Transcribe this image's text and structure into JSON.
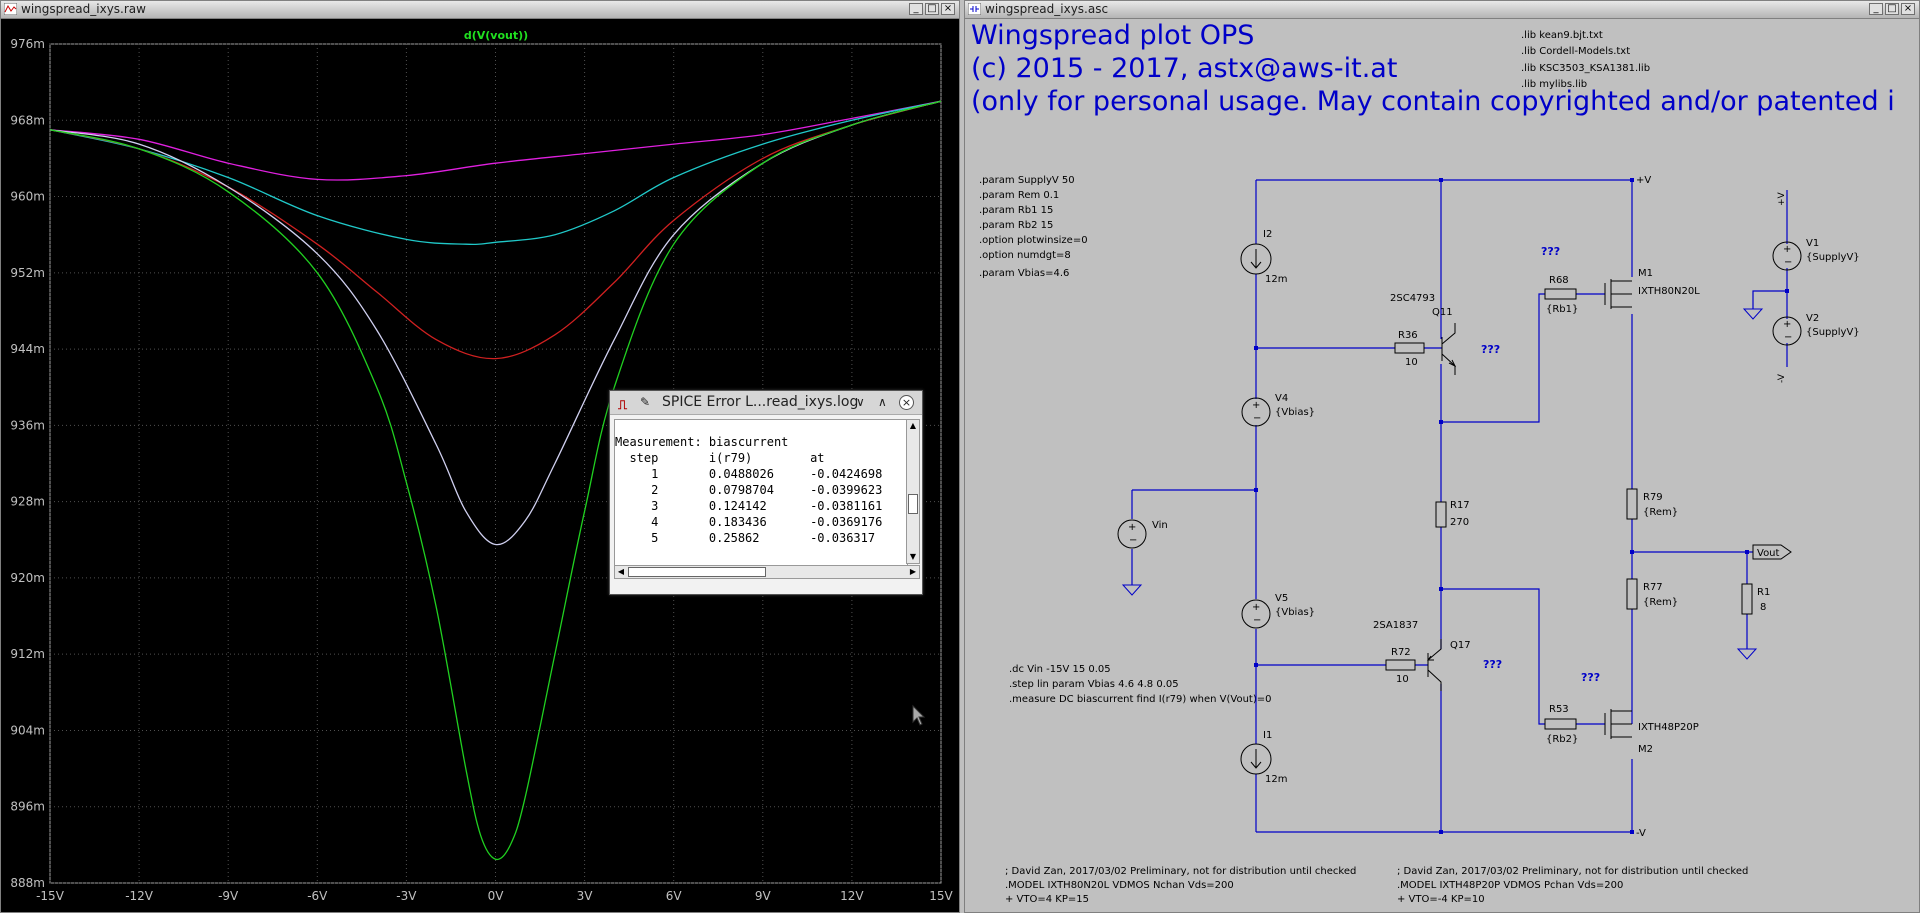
{
  "plot_window": {
    "title": "wingspread_ixys.raw",
    "trace_label": "d(V(vout))"
  },
  "chart_data": {
    "type": "line",
    "title": "d(V(vout))",
    "xlabel": "",
    "ylabel": "",
    "x_tick_labels": [
      "-15V",
      "-12V",
      "-9V",
      "-6V",
      "-3V",
      "0V",
      "3V",
      "6V",
      "9V",
      "12V",
      "15V"
    ],
    "y_tick_labels": [
      "976m",
      "968m",
      "960m",
      "952m",
      "944m",
      "936m",
      "928m",
      "920m",
      "912m",
      "904m",
      "896m",
      "888m"
    ],
    "xlim": [
      -15,
      15
    ],
    "ylim": [
      0.888,
      0.976
    ],
    "grid": true,
    "background": "#000000",
    "series": [
      {
        "color": "#e020e0",
        "x": [
          -15,
          -12,
          -9,
          -6,
          -3,
          0,
          3,
          6,
          9,
          12,
          15
        ],
        "y": [
          0.967,
          0.966,
          0.9635,
          0.9618,
          0.9622,
          0.9635,
          0.9645,
          0.9655,
          0.9665,
          0.9682,
          0.97
        ]
      },
      {
        "color": "#20c8c8",
        "x": [
          -15,
          -12,
          -9,
          -6,
          -3,
          -1,
          0,
          2,
          4,
          6,
          9,
          12,
          15
        ],
        "y": [
          0.967,
          0.965,
          0.962,
          0.958,
          0.9555,
          0.955,
          0.9552,
          0.956,
          0.9585,
          0.962,
          0.9655,
          0.968,
          0.97
        ]
      },
      {
        "color": "#d02020",
        "x": [
          -15,
          -12,
          -9,
          -6,
          -4,
          -2,
          0,
          2,
          4,
          6,
          9,
          12,
          15
        ],
        "y": [
          0.967,
          0.965,
          0.961,
          0.955,
          0.95,
          0.945,
          0.943,
          0.9455,
          0.951,
          0.9575,
          0.964,
          0.9675,
          0.97
        ]
      },
      {
        "color": "#d0d0f0",
        "x": [
          -15,
          -12,
          -9,
          -6,
          -4,
          -2,
          -1,
          0,
          1,
          2,
          4,
          6,
          9,
          12,
          15
        ],
        "y": [
          0.967,
          0.9655,
          0.961,
          0.954,
          0.946,
          0.934,
          0.927,
          0.9235,
          0.926,
          0.932,
          0.945,
          0.956,
          0.9635,
          0.9675,
          0.97
        ]
      },
      {
        "color": "#20d020",
        "x": [
          -15,
          -12,
          -9,
          -6,
          -4,
          -3,
          -2,
          -1,
          -0.5,
          0,
          0.5,
          1,
          2,
          3,
          4,
          6,
          9,
          12,
          15
        ],
        "y": [
          0.967,
          0.965,
          0.9605,
          0.952,
          0.94,
          0.93,
          0.917,
          0.9,
          0.893,
          0.8905,
          0.892,
          0.897,
          0.912,
          0.927,
          0.94,
          0.955,
          0.9635,
          0.9675,
          0.97
        ]
      }
    ]
  },
  "schematic_window": {
    "title": "wingspread_ixys.asc",
    "header_lines": [
      "Wingspread plot OPS",
      "(c) 2015 - 2017, astx@aws-it.at",
      "(only for personal usage. May contain copyrighted and/or patented i"
    ],
    "libs": [
      ".lib kean9.bjt.txt",
      ".lib Cordell-Models.txt",
      ".lib KSC3503_KSA1381.lib",
      ".lib mylibs.lib"
    ],
    "params": [
      ".param SupplyV 50",
      ".param Rem 0.1",
      ".param Rb1 15",
      ".param Rb2 15",
      ".option plotwinsize=0",
      ".option numdgt=8",
      " .param Vbias=4.6"
    ],
    "directives": [
      ".dc Vin -15V 15 0.05",
      ".step lin param Vbias 4.6 4.8 0.05",
      ".measure DC biascurrent  find I(r79) when V(Vout)=0"
    ],
    "models_left": [
      "; David Zan, 2017/03/02 Preliminary, not for distribution until checked",
      ".MODEL IXTH80N20L VDMOS Nchan Vds=200",
      "+ VTO=4 KP=15"
    ],
    "models_right": [
      "; David Zan, 2017/03/02 Preliminary, not for distribution until checked",
      ".MODEL IXTH48P20P VDMOS Pchan Vds=200",
      "+ VTO=-4 KP=10"
    ],
    "labels": {
      "I2": "I2",
      "I2v": "12m",
      "I1": "I1",
      "I1v": "12m",
      "V4": "V4",
      "V4v": "{Vbias}",
      "V5": "V5",
      "V5v": "{Vbias}",
      "Vin": "Vin",
      "V1": "V1",
      "V1v": "{SupplyV}",
      "V2": "V2",
      "V2v": "{SupplyV}",
      "Q11": "Q11",
      "Q11m": "2SC4793",
      "Q17": "Q17",
      "Q17m": "2SA1837",
      "R36": "R36",
      "R36v": "10",
      "R72": "R72",
      "R72v": "10",
      "R17": "R17",
      "R17v": "270",
      "R68": "R68",
      "R68v": "{Rb1}",
      "R53": "R53",
      "R53v": "{Rb2}",
      "R79": "R79",
      "R79v": "{Rem}",
      "R77": "R77",
      "R77v": "{Rem}",
      "R1": "R1",
      "R1v": "8",
      "M1": "M1",
      "M1m": "IXTH80N20L",
      "M2": "M2",
      "M2m": "IXTH48P20P",
      "vplus": "+V",
      "vminus": "-V",
      "vout": "Vout",
      "qqq": "???"
    }
  },
  "error_log": {
    "title": "SPICE Error L...read_ixys.log",
    "heading": "Measurement: biascurrent",
    "columns": "  step       i(r79)        at",
    "rows": [
      "     1       0.0488026     -0.0424698",
      "     2       0.0798704     -0.0399623",
      "     3       0.124142      -0.0381161",
      "     4       0.183436      -0.0369176",
      "     5       0.25862       -0.036317"
    ]
  }
}
